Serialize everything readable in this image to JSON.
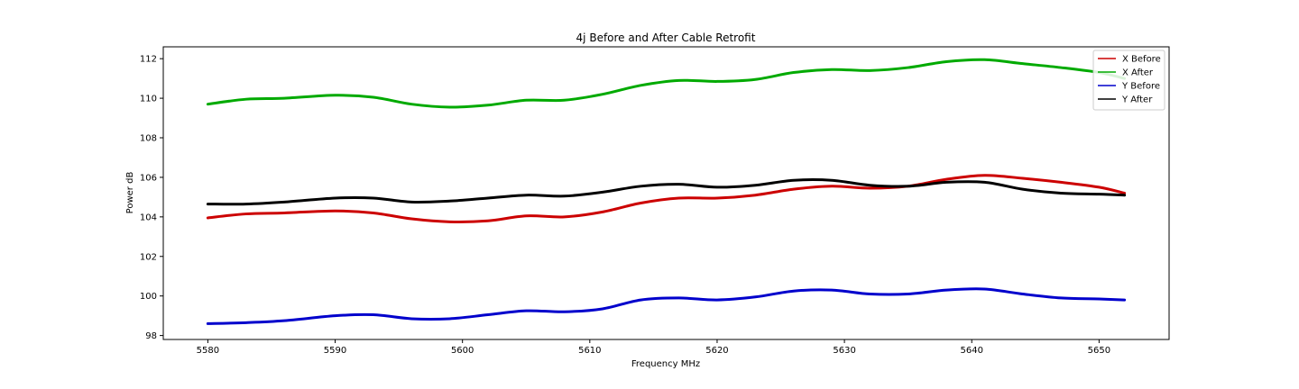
{
  "chart_data": {
    "type": "line",
    "title": "4j Before and After Cable Retrofit",
    "xlabel": "Frequency MHz",
    "ylabel": "Power dB",
    "xlim": [
      5576.5,
      5655.5
    ],
    "ylim": [
      97.8,
      112.6
    ],
    "xticks": [
      5580,
      5590,
      5600,
      5610,
      5620,
      5630,
      5640,
      5650
    ],
    "yticks": [
      98,
      100,
      102,
      104,
      106,
      108,
      110,
      112
    ],
    "grid": false,
    "legend_position": "top-right",
    "series": [
      {
        "name": "X Before",
        "color": "#cc0000",
        "x": [
          5580,
          5583,
          5586,
          5590,
          5593,
          5596,
          5599,
          5602,
          5605,
          5608,
          5611,
          5614,
          5617,
          5620,
          5623,
          5626,
          5629,
          5632,
          5635,
          5638,
          5641,
          5644,
          5647,
          5650,
          5652
        ],
        "y": [
          103.95,
          104.15,
          104.2,
          104.3,
          104.2,
          103.9,
          103.75,
          103.8,
          104.05,
          104.0,
          104.25,
          104.7,
          104.95,
          104.95,
          105.1,
          105.4,
          105.55,
          105.45,
          105.55,
          105.9,
          106.1,
          105.95,
          105.75,
          105.5,
          105.2
        ]
      },
      {
        "name": "X After",
        "color": "#00aa00",
        "x": [
          5580,
          5583,
          5586,
          5590,
          5593,
          5596,
          5599,
          5602,
          5605,
          5608,
          5611,
          5614,
          5617,
          5620,
          5623,
          5626,
          5629,
          5632,
          5635,
          5638,
          5641,
          5644,
          5647,
          5650,
          5652
        ],
        "y": [
          109.7,
          109.95,
          110.0,
          110.15,
          110.05,
          109.7,
          109.55,
          109.65,
          109.9,
          109.9,
          110.2,
          110.65,
          110.9,
          110.85,
          110.95,
          111.3,
          111.45,
          111.4,
          111.55,
          111.85,
          111.95,
          111.75,
          111.55,
          111.3,
          111.0
        ]
      },
      {
        "name": "Y Before",
        "color": "#0000cc",
        "x": [
          5580,
          5583,
          5586,
          5590,
          5593,
          5596,
          5599,
          5602,
          5605,
          5608,
          5611,
          5614,
          5617,
          5620,
          5623,
          5626,
          5629,
          5632,
          5635,
          5638,
          5641,
          5644,
          5647,
          5650,
          5652
        ],
        "y": [
          98.6,
          98.65,
          98.75,
          99.0,
          99.05,
          98.85,
          98.85,
          99.05,
          99.25,
          99.2,
          99.35,
          99.8,
          99.9,
          99.8,
          99.95,
          100.25,
          100.3,
          100.1,
          100.1,
          100.3,
          100.35,
          100.1,
          99.9,
          99.85,
          99.8
        ]
      },
      {
        "name": "Y After",
        "color": "#000000",
        "x": [
          5580,
          5583,
          5586,
          5590,
          5593,
          5596,
          5599,
          5602,
          5605,
          5608,
          5611,
          5614,
          5617,
          5620,
          5623,
          5626,
          5629,
          5632,
          5635,
          5638,
          5641,
          5644,
          5647,
          5650,
          5652
        ],
        "y": [
          104.65,
          104.65,
          104.75,
          104.95,
          104.95,
          104.75,
          104.8,
          104.95,
          105.1,
          105.05,
          105.25,
          105.55,
          105.65,
          105.5,
          105.6,
          105.85,
          105.85,
          105.6,
          105.55,
          105.75,
          105.75,
          105.4,
          105.2,
          105.15,
          105.1
        ]
      }
    ]
  }
}
